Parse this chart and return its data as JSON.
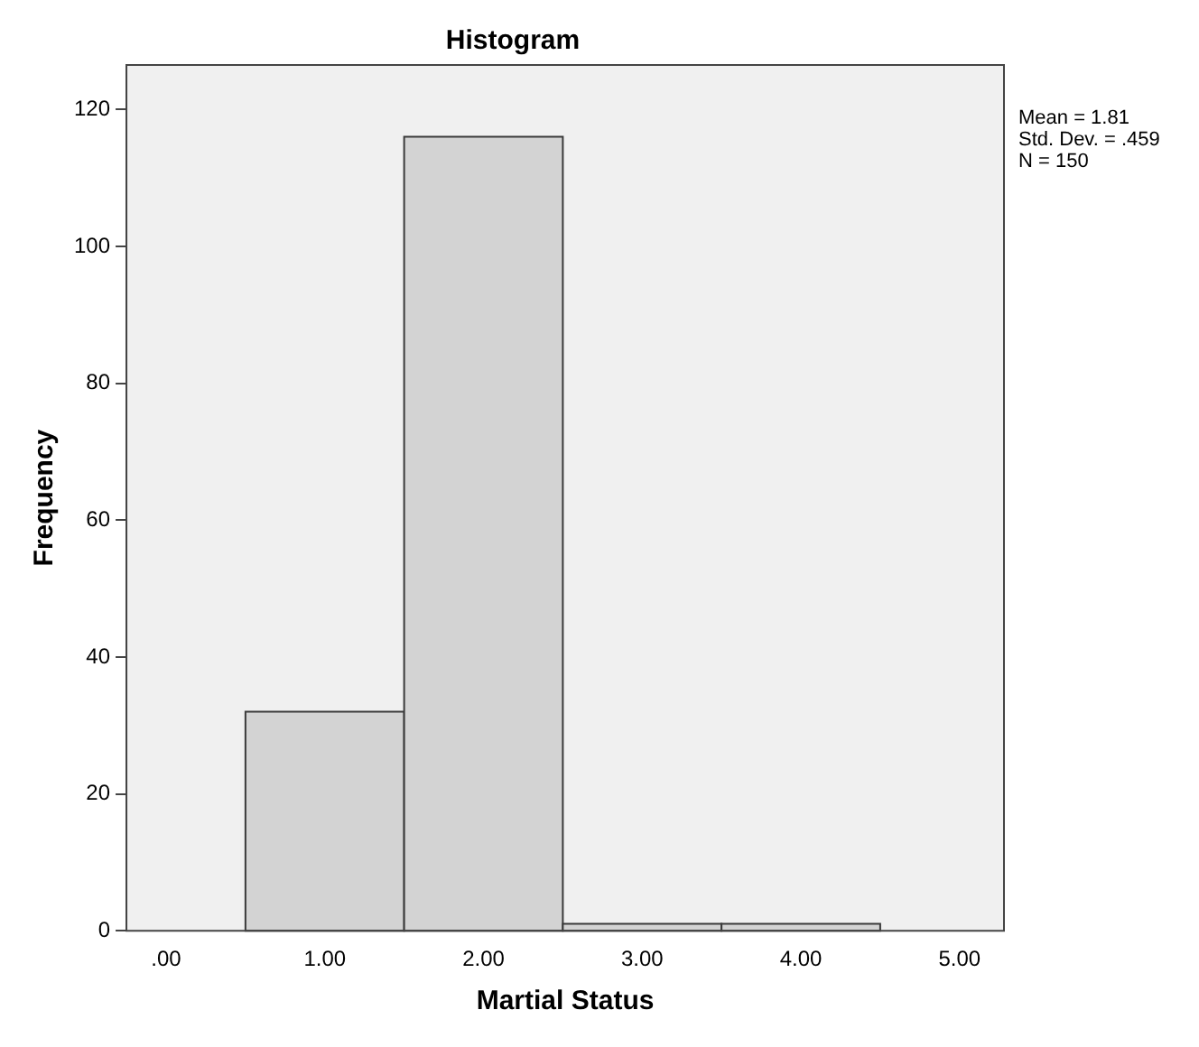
{
  "chart_data": {
    "type": "histogram",
    "title": "Histogram",
    "xlabel": "Martial Status",
    "ylabel": "Frequency",
    "bins": [
      0.5,
      1.5,
      2.5,
      3.5,
      4.5
    ],
    "values": [
      32,
      116,
      1,
      1
    ],
    "color": "#d3d3d3",
    "xlim": [
      -0.25,
      5.28
    ],
    "xticks": [
      {
        "value": 0,
        "label": ".00"
      },
      {
        "value": 1,
        "label": "1.00"
      },
      {
        "value": 2,
        "label": "2.00"
      },
      {
        "value": 3,
        "label": "3.00"
      },
      {
        "value": 4,
        "label": "4.00"
      },
      {
        "value": 5,
        "label": "5.00"
      }
    ],
    "ylim": [
      0,
      126.5
    ],
    "yticks": [
      0,
      20,
      40,
      60,
      80,
      100,
      120
    ],
    "grid": false,
    "legend": false,
    "annotations": [
      "Mean = 1.81",
      "Std. Dev. = .459",
      "N = 150"
    ]
  }
}
